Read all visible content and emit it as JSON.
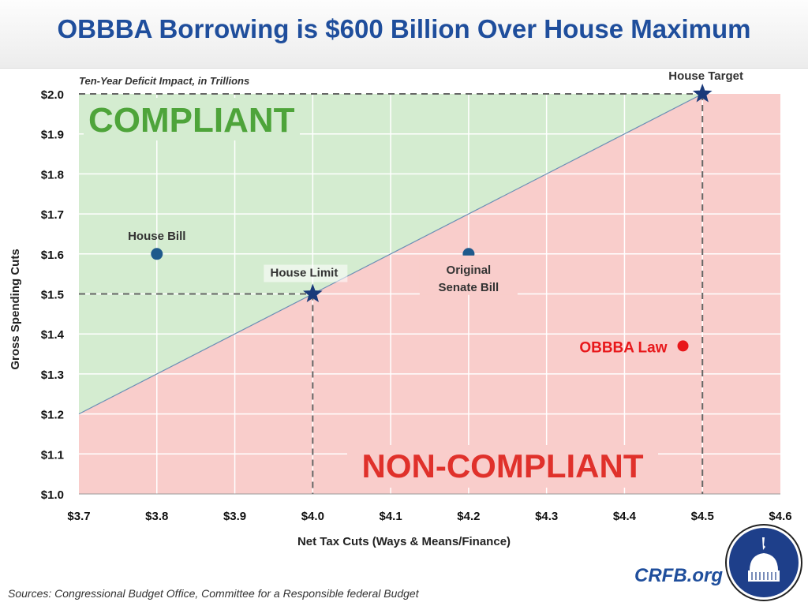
{
  "title": "OBBBA Borrowing is $600 Billion Over House Maximum",
  "source": "Sources: Congressional Budget Office, Committee for a Responsible federal Budget",
  "brand": "CRFB.org",
  "logo": "capitol-dome-seal",
  "colors": {
    "title": "#1f4e9c",
    "compliant_region": "#d4ecd0",
    "noncompliant_region": "#f9cdcb",
    "compliant_text": "#4ea43a",
    "noncompliant_text": "#e0312b",
    "points": "#1f5a8c",
    "stars": "#1a3a7a",
    "obbba": "#e8181b"
  },
  "chart_data": {
    "type": "scatter",
    "subtitle": "Ten-Year Deficit Impact, in Trillions",
    "xlabel": "Net Tax Cuts (Ways & Means/Finance)",
    "ylabel": "Gross Spending Cuts",
    "xlim": [
      3.7,
      4.6
    ],
    "ylim": [
      1.0,
      2.0
    ],
    "grid": true,
    "xticks": [
      "$3.7",
      "$3.8",
      "$3.9",
      "$4.0",
      "$4.1",
      "$4.2",
      "$4.3",
      "$4.4",
      "$4.5",
      "$4.6"
    ],
    "yticks": [
      "$1.0",
      "$1.1",
      "$1.2",
      "$1.3",
      "$1.4",
      "$1.5",
      "$1.6",
      "$1.7",
      "$1.8",
      "$1.9",
      "$2.0"
    ],
    "boundary": [
      [
        3.7,
        1.2
      ],
      [
        4.5,
        2.0
      ]
    ],
    "regions": {
      "compliant": "COMPLIANT",
      "noncompliant": "NON-COMPLIANT"
    },
    "points": [
      {
        "label": "House Bill",
        "x": 3.8,
        "y": 1.6,
        "marker": "circle"
      },
      {
        "label": "House Limit",
        "x": 4.0,
        "y": 1.5,
        "marker": "star"
      },
      {
        "label": "Original Senate Bill",
        "x": 4.2,
        "y": 1.6,
        "marker": "circle"
      },
      {
        "label": "House Target",
        "x": 4.5,
        "y": 2.0,
        "marker": "star"
      },
      {
        "label": "OBBBA Law",
        "x": 4.475,
        "y": 1.37,
        "marker": "circle"
      }
    ]
  }
}
